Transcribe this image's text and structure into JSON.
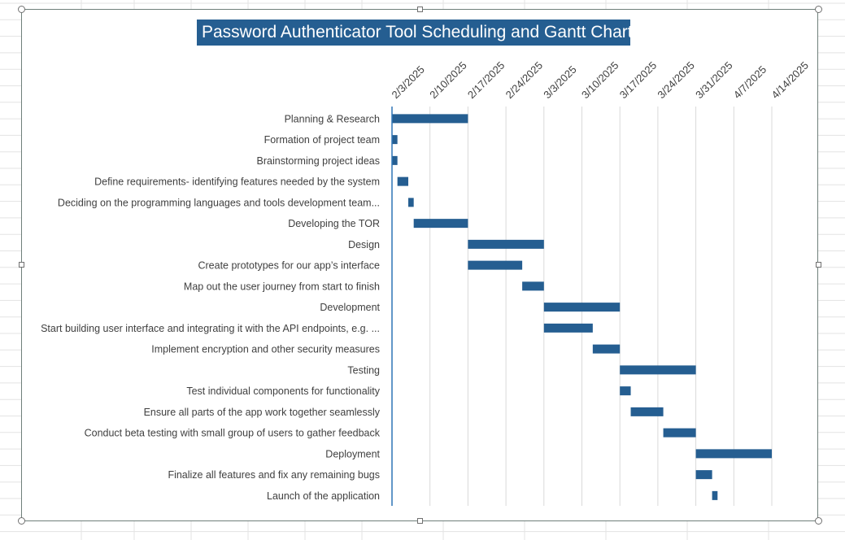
{
  "chart_data": {
    "type": "bar",
    "subtype": "gantt",
    "title": "Password Authenticator Tool Scheduling and Gantt Chart",
    "x_axis": {
      "type": "date",
      "position": "top",
      "min": "2025-02-03",
      "max": "2025-04-14",
      "tick_labels": [
        "2/3/2025",
        "2/10/2025",
        "2/17/2025",
        "2/24/2025",
        "3/3/2025",
        "3/10/2025",
        "3/17/2025",
        "3/24/2025",
        "3/31/2025",
        "4/7/2025",
        "4/14/2025"
      ],
      "label_rotation": "45deg",
      "gridlines": true
    },
    "bar_color": "#255e91",
    "grid_color": "#d9d9d9",
    "tasks": [
      {
        "name": "Planning & Research",
        "start": "2025-02-03",
        "end": "2025-02-17"
      },
      {
        "name": "Formation of project team",
        "start": "2025-02-03",
        "end": "2025-02-04"
      },
      {
        "name": "Brainstorming project ideas",
        "start": "2025-02-03",
        "end": "2025-02-04"
      },
      {
        "name": "Define requirements- identifying features needed by the system",
        "start": "2025-02-04",
        "end": "2025-02-06"
      },
      {
        "name": "Deciding on the programming languages and tools development team...",
        "start": "2025-02-06",
        "end": "2025-02-07"
      },
      {
        "name": "Developing the TOR",
        "start": "2025-02-07",
        "end": "2025-02-17"
      },
      {
        "name": "Design",
        "start": "2025-02-17",
        "end": "2025-03-03"
      },
      {
        "name": "Create prototypes for our app’s interface",
        "start": "2025-02-17",
        "end": "2025-02-27"
      },
      {
        "name": "Map out the user journey from start to finish",
        "start": "2025-02-27",
        "end": "2025-03-03"
      },
      {
        "name": "Development",
        "start": "2025-03-03",
        "end": "2025-03-17"
      },
      {
        "name": "Start building user interface and integrating it with the API endpoints, e.g. ...",
        "start": "2025-03-03",
        "end": "2025-03-12"
      },
      {
        "name": "Implement encryption and other security measures",
        "start": "2025-03-12",
        "end": "2025-03-17"
      },
      {
        "name": "Testing",
        "start": "2025-03-17",
        "end": "2025-03-31"
      },
      {
        "name": "Test individual components for functionality",
        "start": "2025-03-17",
        "end": "2025-03-19"
      },
      {
        "name": "Ensure all parts of the app work together seamlessly",
        "start": "2025-03-19",
        "end": "2025-03-25"
      },
      {
        "name": "Conduct beta testing with small group of users to gather feedback",
        "start": "2025-03-25",
        "end": "2025-03-31"
      },
      {
        "name": "Deployment",
        "start": "2025-03-31",
        "end": "2025-04-14"
      },
      {
        "name": "Finalize all features and fix any remaining bugs",
        "start": "2025-03-31",
        "end": "2025-04-03"
      },
      {
        "name": "Launch of the application",
        "start": "2025-04-03",
        "end": "2025-04-04"
      }
    ]
  }
}
